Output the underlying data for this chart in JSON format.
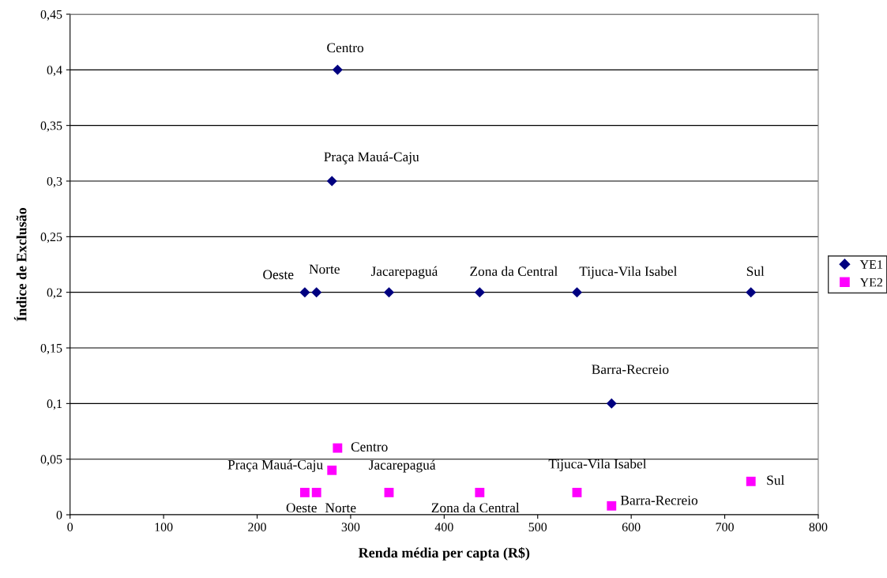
{
  "chart_data": {
    "type": "scatter",
    "xlabel": "Renda média per capta (R$)",
    "ylabel": "Índice de Exclusão",
    "series": [
      {
        "name": "YE1",
        "color": "#000080",
        "marker": "diamond",
        "x": [
          286,
          280,
          251,
          263.5,
          341,
          438,
          542,
          728,
          579
        ],
        "values": [
          0.4,
          0.3,
          0.2,
          0.2,
          0.2,
          0.2,
          0.2,
          0.2,
          0.1
        ]
      },
      {
        "name": "YE2",
        "color": "#ff00ff",
        "marker": "square",
        "x": [
          286,
          280,
          251,
          263.5,
          341,
          438,
          542,
          579,
          728
        ],
        "values": [
          0.06,
          0.04,
          0.02,
          0.02,
          0.02,
          0.02,
          0.02,
          0.008,
          0.03
        ]
      }
    ],
    "annotations": [
      {
        "text": "Centro",
        "x": 286,
        "y": 0.4
      },
      {
        "text": "Praça Mauá-Caju",
        "x": 280,
        "y": 0.3
      },
      {
        "text": "Oeste",
        "x": 251,
        "y": 0.2
      },
      {
        "text": "Norte",
        "x": 263.5,
        "y": 0.2
      },
      {
        "text": "Jacarepaguá",
        "x": 341,
        "y": 0.2
      },
      {
        "text": "Zona da Central",
        "x": 438,
        "y": 0.2
      },
      {
        "text": "Tijuca-Vila Isabel",
        "x": 542,
        "y": 0.2
      },
      {
        "text": "Sul",
        "x": 728,
        "y": 0.2
      },
      {
        "text": "Barra-Recreio",
        "x": 579,
        "y": 0.1
      },
      {
        "text": "Centro",
        "x": 286,
        "y": 0.06
      },
      {
        "text": "Praça Mauá-Caju",
        "x": 280,
        "y": 0.04
      },
      {
        "text": "Oeste",
        "x": 251,
        "y": 0.02
      },
      {
        "text": "Norte",
        "x": 263.5,
        "y": 0.02
      },
      {
        "text": "Jacarepaguá",
        "x": 341,
        "y": 0.02
      },
      {
        "text": "Zona da Central",
        "x": 438,
        "y": 0.02
      },
      {
        "text": "Tijuca-Vila Isabel",
        "x": 542,
        "y": 0.02
      },
      {
        "text": "Barra-Recreio",
        "x": 579,
        "y": 0.008
      },
      {
        "text": "Sul",
        "x": 728,
        "y": 0.03
      }
    ],
    "xlim": [
      0,
      800
    ],
    "xticks": [
      0,
      100,
      200,
      300,
      400,
      500,
      600,
      700,
      800
    ],
    "ylim": [
      0,
      0.45
    ],
    "yticks": [
      0,
      {
        "value": 0.05,
        "label": "0,05"
      },
      {
        "value": 0.1,
        "label": "0,1"
      },
      {
        "value": 0.15,
        "label": "0,15"
      },
      {
        "value": 0.2,
        "label": "0,2"
      },
      {
        "value": 0.25,
        "label": "0,25"
      },
      {
        "value": 0.3,
        "label": "0,3"
      },
      {
        "value": 0.35,
        "label": "0,35"
      },
      {
        "value": 0.4,
        "label": "0,4"
      },
      {
        "value": 0.45,
        "label": "0,45"
      }
    ],
    "grid": "y",
    "legend": "right"
  }
}
